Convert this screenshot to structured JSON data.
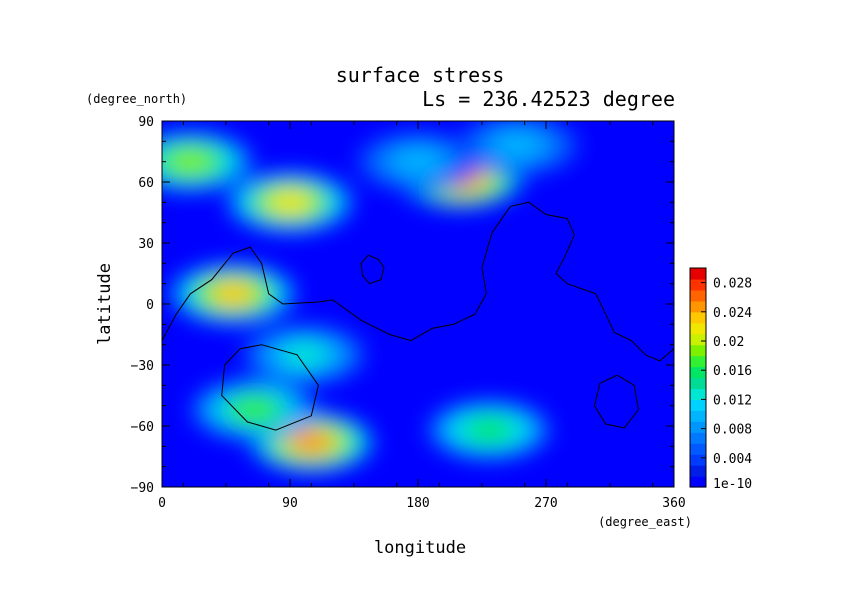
{
  "chart_data": {
    "type": "heatmap",
    "title": "surface stress",
    "subtitle": "Ls = 236.42523 degree",
    "xlabel": "longitude",
    "ylabel": "latitude",
    "x_unit": "(degree_east)",
    "y_unit": "(degree_north)",
    "xlim": [
      0,
      360
    ],
    "ylim": [
      -90,
      90
    ],
    "x_ticks": [
      "0",
      "90",
      "180",
      "270",
      "360"
    ],
    "y_ticks": [
      "90",
      "60",
      "30",
      "0",
      "−30",
      "−60",
      "−90"
    ],
    "colorbar": {
      "min_label": "1e-10",
      "range": [
        0,
        0.03
      ],
      "tick_values": [
        0.004,
        0.008,
        0.012,
        0.016,
        0.02,
        0.024,
        0.028
      ],
      "tick_labels": [
        "0.004",
        "0.008",
        "0.012",
        "0.016",
        "0.02",
        "0.024",
        "0.028"
      ],
      "colors": [
        "#0000ff",
        "#001ee6",
        "#003cff",
        "#005aff",
        "#0078ff",
        "#0096ff",
        "#00b4ff",
        "#00d2ff",
        "#00e6d2",
        "#00dc96",
        "#00e664",
        "#32f032",
        "#7df000",
        "#c8f000",
        "#f0e600",
        "#ffc800",
        "#ff9600",
        "#ff6400",
        "#ff3200",
        "#e60000"
      ]
    },
    "hotspots": [
      {
        "lon": 210,
        "lat": 62,
        "value": 0.026
      },
      {
        "lon": 50,
        "lat": 5,
        "value": 0.023
      },
      {
        "lon": 105,
        "lat": -68,
        "value": 0.024
      },
      {
        "lon": 90,
        "lat": 50,
        "value": 0.022
      },
      {
        "lon": 20,
        "lat": 70,
        "value": 0.018
      },
      {
        "lon": 65,
        "lat": -52,
        "value": 0.017
      },
      {
        "lon": 230,
        "lat": -62,
        "value": 0.016
      },
      {
        "lon": 100,
        "lat": -25,
        "value": 0.012
      },
      {
        "lon": 180,
        "lat": 70,
        "value": 0.01
      },
      {
        "lon": 250,
        "lat": 78,
        "value": 0.01
      }
    ],
    "contours": [
      {
        "name": "contour-a",
        "points": [
          [
            0,
            -18
          ],
          [
            10,
            -5
          ],
          [
            20,
            5
          ],
          [
            35,
            12
          ],
          [
            50,
            25
          ],
          [
            62,
            28
          ],
          [
            70,
            20
          ],
          [
            75,
            5
          ],
          [
            85,
            0
          ],
          [
            110,
            1
          ],
          [
            120,
            2
          ],
          [
            140,
            -8
          ],
          [
            160,
            -15
          ],
          [
            175,
            -18
          ],
          [
            190,
            -12
          ],
          [
            205,
            -10
          ],
          [
            220,
            -5
          ],
          [
            228,
            5
          ],
          [
            225,
            18
          ],
          [
            232,
            35
          ],
          [
            245,
            48
          ],
          [
            258,
            50
          ],
          [
            270,
            44
          ],
          [
            285,
            42
          ],
          [
            290,
            34
          ],
          [
            283,
            23
          ],
          [
            277,
            15
          ],
          [
            285,
            10
          ],
          [
            305,
            5
          ],
          [
            312,
            -5
          ],
          [
            318,
            -14
          ],
          [
            330,
            -18
          ],
          [
            340,
            -25
          ],
          [
            350,
            -28
          ],
          [
            360,
            -22
          ]
        ]
      },
      {
        "name": "contour-b",
        "points": [
          [
            70,
            -20
          ],
          [
            95,
            -25
          ],
          [
            110,
            -40
          ],
          [
            105,
            -55
          ],
          [
            80,
            -62
          ],
          [
            60,
            -58
          ],
          [
            42,
            -45
          ],
          [
            44,
            -30
          ],
          [
            55,
            -22
          ],
          [
            70,
            -20
          ]
        ]
      },
      {
        "name": "contour-c",
        "points": [
          [
            145,
            24
          ],
          [
            152,
            22
          ],
          [
            156,
            18
          ],
          [
            154,
            12
          ],
          [
            146,
            10
          ],
          [
            141,
            14
          ],
          [
            140,
            20
          ],
          [
            145,
            24
          ]
        ]
      },
      {
        "name": "contour-d",
        "points": [
          [
            320,
            -35
          ],
          [
            332,
            -40
          ],
          [
            335,
            -52
          ],
          [
            325,
            -61
          ],
          [
            312,
            -59
          ],
          [
            304,
            -50
          ],
          [
            308,
            -39
          ],
          [
            320,
            -35
          ]
        ]
      }
    ]
  }
}
